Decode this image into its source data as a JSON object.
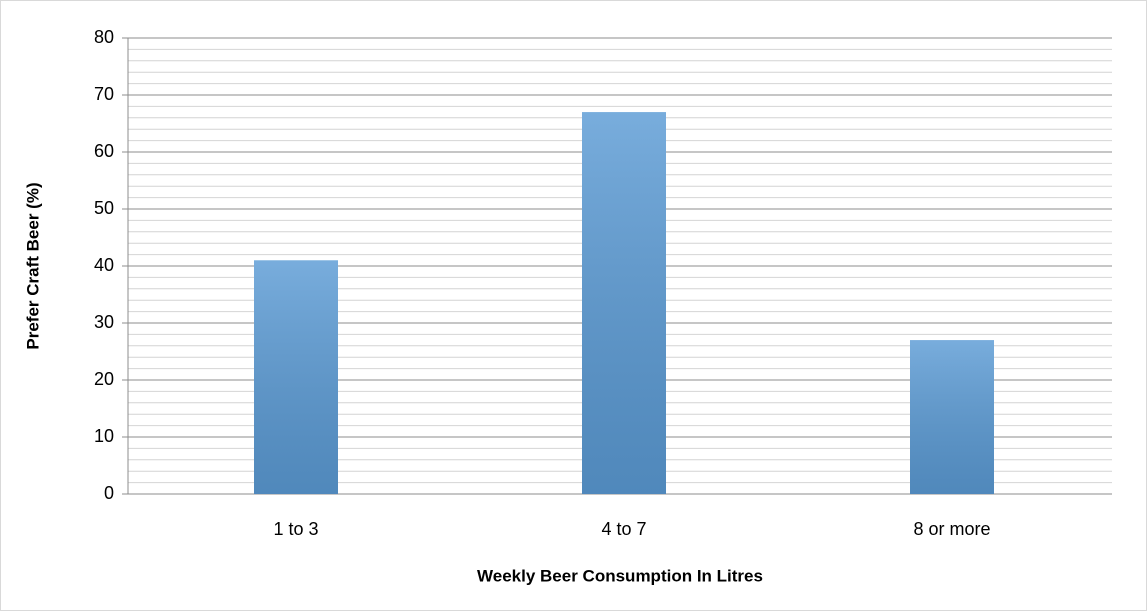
{
  "chart_data": {
    "type": "bar",
    "x_label": "Weekly Beer Consumption In Litres",
    "y_label": "Prefer Craft Beer (%)",
    "categories": [
      "1 to 3",
      "4 to 7",
      "8 or more"
    ],
    "values": [
      41,
      67,
      27
    ],
    "color": "#5b9bd5",
    "ylim": [
      0,
      80
    ],
    "yticks": [
      0,
      10,
      20,
      30,
      40,
      50,
      60,
      70,
      80
    ],
    "minor_yticks": [
      2,
      4,
      6,
      8,
      12,
      14,
      16,
      18,
      22,
      24,
      26,
      28,
      32,
      34,
      36,
      38,
      42,
      44,
      46,
      48,
      52,
      54,
      56,
      58,
      62,
      64,
      66,
      68,
      72,
      74,
      76,
      78
    ],
    "grid": true
  }
}
